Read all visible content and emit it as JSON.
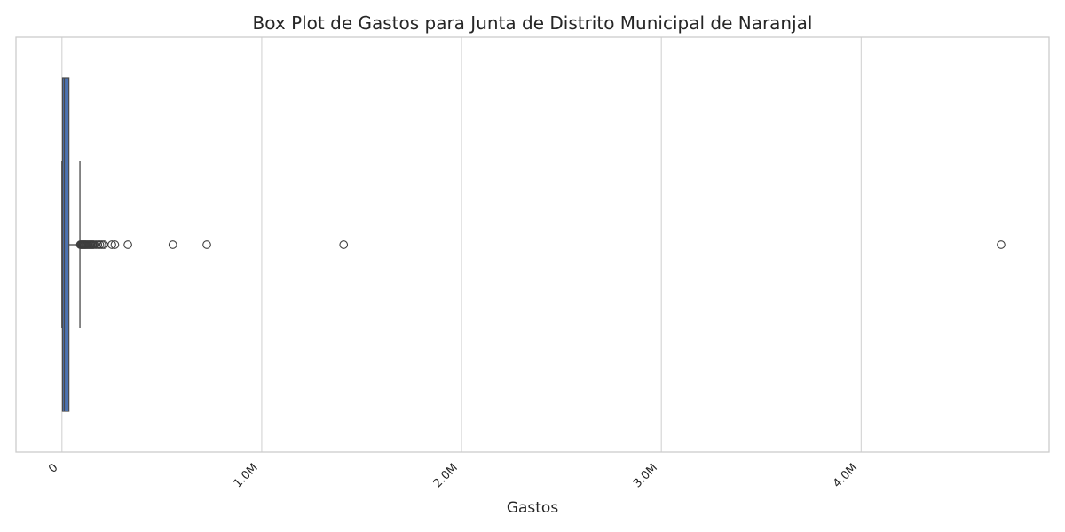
{
  "chart_data": {
    "type": "box",
    "title": "Box Plot de Gastos para Junta de Distrito Municipal de Naranjal",
    "xlabel": "Gastos",
    "ylabel": "",
    "orientation": "horizontal",
    "xlim": [
      -230000,
      4940000
    ],
    "xticks": [
      0,
      1000000,
      2000000,
      3000000,
      4000000
    ],
    "xtick_labels": [
      "0",
      "1.0M",
      "2.0M",
      "3.0M",
      "4.0M"
    ],
    "grid": "x",
    "box": {
      "whisker_low": 0,
      "q1": 3000,
      "median": 12000,
      "q3": 35000,
      "whisker_high": 90000,
      "color": "#4c72b0"
    },
    "outliers": [
      92000,
      96000,
      100000,
      104000,
      108000,
      112000,
      116000,
      120000,
      125000,
      130000,
      135000,
      140000,
      145000,
      150000,
      155000,
      160000,
      170000,
      180000,
      190000,
      200000,
      210000,
      250000,
      265000,
      330000,
      555000,
      725000,
      1410000,
      4700000
    ]
  }
}
